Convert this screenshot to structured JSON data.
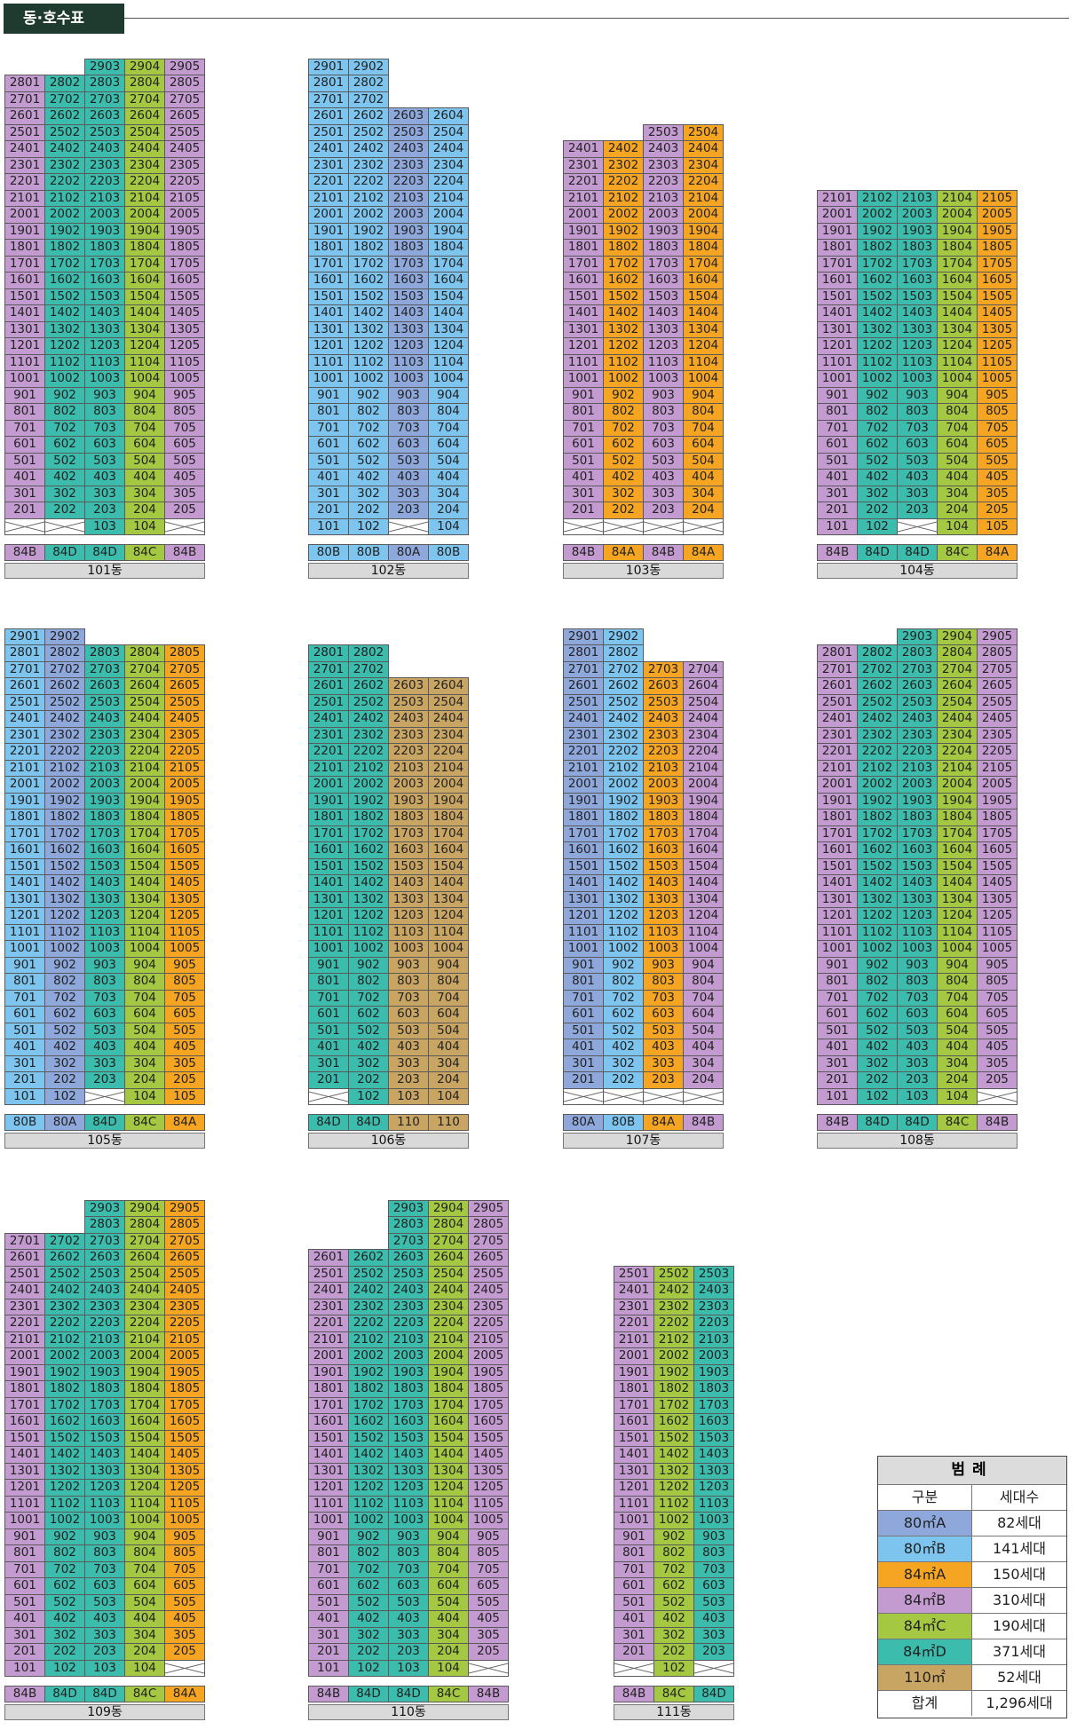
{
  "title": "동·호수표",
  "colors": {
    "80A": "#8ea8dc",
    "80B": "#7dc4ee",
    "84A": "#f6a522",
    "84B": "#c49bd0",
    "84C": "#a4c841",
    "84D": "#3cbcad",
    "110": "#c9a564"
  },
  "buildings": [
    {
      "name": "101동",
      "types": [
        "84B",
        "84D",
        "84D",
        "84C",
        "84B"
      ],
      "floors": [
        [],
        [
          "28",
          "29"
        ],
        [
          "28",
          "29"
        ],
        [
          "28",
          "29"
        ],
        [
          "28",
          "29"
        ],
        [
          "28",
          "29"
        ]
      ],
      "max": [
        28,
        28,
        29,
        29,
        29
      ],
      "lowest": [
        2,
        2,
        1,
        1,
        2
      ],
      "pilotis": [
        1,
        1,
        0,
        0,
        1
      ]
    },
    {
      "name": "102동",
      "types": [
        "80B",
        "80B",
        "80A",
        "80B"
      ],
      "max": [
        29,
        29,
        26,
        26
      ],
      "lowest": [
        1,
        1,
        2,
        1
      ],
      "pilotis": [
        0,
        0,
        1,
        0
      ]
    },
    {
      "name": "103동",
      "types": [
        "84B",
        "84A",
        "84B",
        "84A"
      ],
      "max": [
        24,
        24,
        25,
        25
      ],
      "lowest": [
        2,
        2,
        2,
        2
      ],
      "pilotis": [
        1,
        1,
        1,
        1
      ]
    },
    {
      "name": "104동",
      "types": [
        "84B",
        "84D",
        "84D",
        "84C",
        "84A"
      ],
      "max": [
        21,
        21,
        21,
        21,
        21
      ],
      "lowest": [
        1,
        1,
        2,
        1,
        1
      ],
      "pilotis": [
        0,
        0,
        1,
        0,
        0
      ]
    },
    {
      "name": "105동",
      "types": [
        "80B",
        "80A",
        "84D",
        "84C",
        "84A"
      ],
      "max": [
        29,
        29,
        28,
        28,
        28
      ],
      "lowest": [
        1,
        1,
        2,
        1,
        1
      ],
      "pilotis": [
        0,
        0,
        1,
        0,
        0
      ]
    },
    {
      "name": "106동",
      "types": [
        "84D",
        "84D",
        "110",
        "110"
      ],
      "max": [
        28,
        28,
        26,
        26
      ],
      "lowest": [
        2,
        1,
        1,
        1
      ],
      "pilotis": [
        1,
        0,
        0,
        0
      ]
    },
    {
      "name": "107동",
      "types": [
        "80A",
        "80B",
        "84A",
        "84B"
      ],
      "max": [
        29,
        29,
        27,
        27
      ],
      "lowest": [
        2,
        2,
        2,
        2
      ],
      "pilotis": [
        1,
        1,
        1,
        1
      ]
    },
    {
      "name": "108동",
      "types": [
        "84B",
        "84D",
        "84D",
        "84C",
        "84B"
      ],
      "max": [
        28,
        28,
        29,
        29,
        29
      ],
      "lowest": [
        1,
        1,
        1,
        1,
        2
      ],
      "pilotis": [
        0,
        0,
        0,
        0,
        1
      ]
    },
    {
      "name": "109동",
      "types": [
        "84B",
        "84D",
        "84D",
        "84C",
        "84A"
      ],
      "max": [
        27,
        27,
        29,
        29,
        29
      ],
      "lowest": [
        1,
        1,
        1,
        1,
        2
      ],
      "pilotis": [
        0,
        0,
        0,
        0,
        1
      ]
    },
    {
      "name": "110동",
      "types": [
        "84B",
        "84D",
        "84D",
        "84C",
        "84B"
      ],
      "max": [
        26,
        26,
        29,
        29,
        29
      ],
      "lowest": [
        1,
        1,
        1,
        1,
        2
      ],
      "pilotis": [
        0,
        0,
        0,
        0,
        1
      ]
    },
    {
      "name": "111동",
      "types": [
        "84B",
        "84C",
        "84D"
      ],
      "max": [
        25,
        25,
        25
      ],
      "lowest": [
        2,
        1,
        2
      ],
      "pilotis": [
        1,
        0,
        1
      ]
    }
  ],
  "legend": {
    "title": "범례",
    "header": [
      "구분",
      "세대수"
    ],
    "rows": [
      {
        "type": "80㎡A",
        "count": "82세대",
        "key": "80A"
      },
      {
        "type": "80㎡B",
        "count": "141세대",
        "key": "80B"
      },
      {
        "type": "84㎡A",
        "count": "150세대",
        "key": "84A"
      },
      {
        "type": "84㎡B",
        "count": "310세대",
        "key": "84B"
      },
      {
        "type": "84㎡C",
        "count": "190세대",
        "key": "84C"
      },
      {
        "type": "84㎡D",
        "count": "371세대",
        "key": "84D"
      },
      {
        "type": "110㎡",
        "count": "52세대",
        "key": "110"
      }
    ],
    "total_label": "합계",
    "total_count": "1,296세대"
  }
}
